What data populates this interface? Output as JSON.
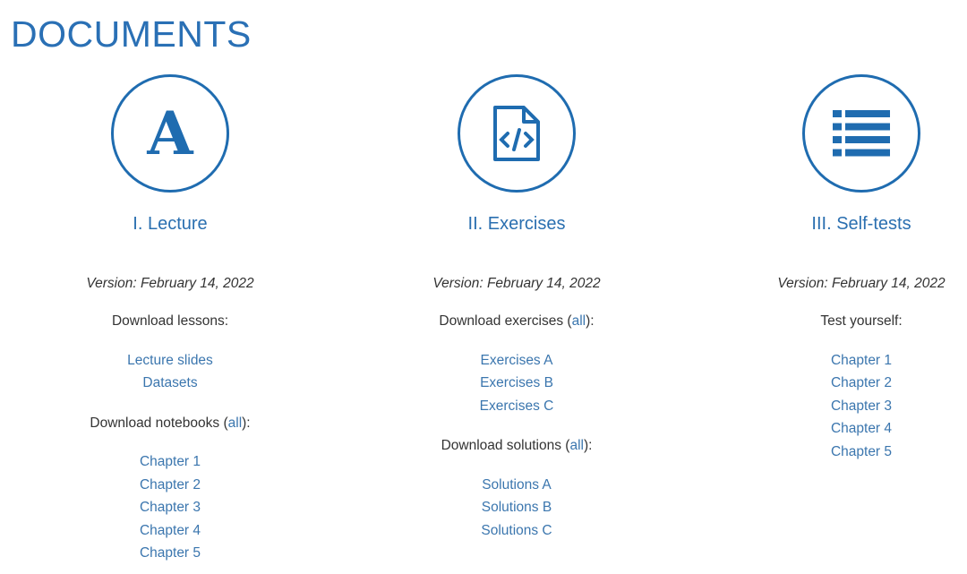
{
  "page_title": "DOCUMENTS",
  "accent_color": "#1f6cb0",
  "columns": [
    {
      "icon": "font-letter-a-icon",
      "heading": "I. Lecture",
      "version": "Version: February 14, 2022",
      "sections": [
        {
          "label": "Download lessons:",
          "all": null,
          "links": [
            "Lecture slides",
            "Datasets"
          ]
        },
        {
          "label": "Download notebooks (",
          "all": "all",
          "suffix": "):",
          "links": [
            "Chapter 1",
            "Chapter 2",
            "Chapter 3",
            "Chapter 4",
            "Chapter 5"
          ]
        }
      ]
    },
    {
      "icon": "code-file-icon",
      "heading": "II. Exercises",
      "version": "Version: February 14, 2022",
      "sections": [
        {
          "label": "Download exercises (",
          "all": "all",
          "suffix": "):",
          "links": [
            "Exercises A",
            "Exercises B",
            "Exercises C"
          ]
        },
        {
          "label": "Download solutions (",
          "all": "all",
          "suffix": "):",
          "links": [
            "Solutions A",
            "Solutions B",
            "Solutions C"
          ]
        }
      ]
    },
    {
      "icon": "list-icon",
      "heading": "III. Self-tests",
      "version": "Version: February 14, 2022",
      "sections": [
        {
          "label": "Test yourself:",
          "all": null,
          "links": [
            "Chapter 1",
            "Chapter 2",
            "Chapter 3",
            "Chapter 4",
            "Chapter 5"
          ]
        }
      ]
    }
  ]
}
